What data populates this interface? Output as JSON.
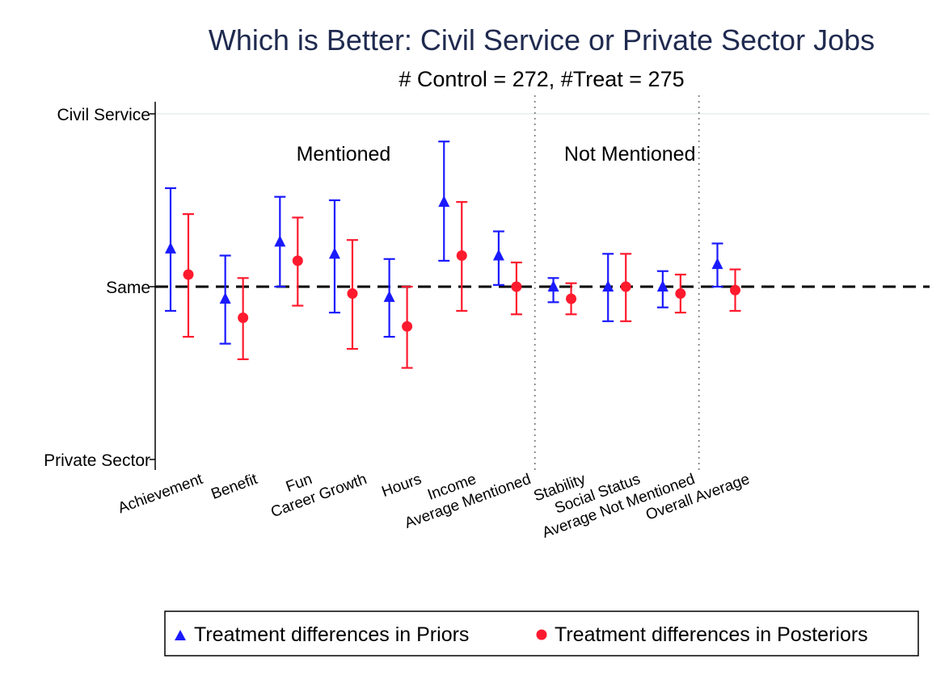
{
  "chart_data": {
    "type": "scatter",
    "title": "Which is Better: Civil Service or Private Sector Jobs",
    "subtitle": "# Control = 272, #Treat = 275",
    "ylim": [
      -1,
      1
    ],
    "y_ticks": [
      {
        "value": 1,
        "label": "Civil Service"
      },
      {
        "value": 0,
        "label": "Same"
      },
      {
        "value": -1,
        "label": "Private Sector"
      }
    ],
    "reference_line": 0,
    "grid": false,
    "sections": [
      {
        "label": "Mentioned",
        "categories": [
          "Achievement",
          "Benefit",
          "Fun",
          "Career Growth",
          "Hours",
          "Income",
          "Average Mentioned"
        ]
      },
      {
        "label": "Not Mentioned",
        "categories": [
          "Stability",
          "Social Status",
          "Average Not Mentioned"
        ]
      }
    ],
    "categories": [
      "Achievement",
      "Benefit",
      "Fun",
      "Career Growth",
      "Hours",
      "Income",
      "Average Mentioned",
      "Stability",
      "Social Status",
      "Average Not Mentioned",
      "Overall Average"
    ],
    "series": [
      {
        "name": "Treatment differences in Priors",
        "marker": "triangle",
        "color": "#1a1aff",
        "values": [
          0.22,
          -0.07,
          0.26,
          0.19,
          -0.06,
          0.49,
          0.18,
          0.0,
          0.0,
          0.0,
          0.13
        ],
        "ci_low": [
          -0.14,
          -0.33,
          0.0,
          -0.15,
          -0.29,
          0.15,
          0.01,
          -0.09,
          -0.2,
          -0.12,
          0.0
        ],
        "ci_high": [
          0.57,
          0.18,
          0.52,
          0.5,
          0.16,
          0.84,
          0.32,
          0.05,
          0.19,
          0.09,
          0.25
        ]
      },
      {
        "name": "Treatment differences in Posteriors",
        "marker": "circle",
        "color": "#ff1a2e",
        "values": [
          0.07,
          -0.18,
          0.15,
          -0.04,
          -0.23,
          0.18,
          0.0,
          -0.07,
          0.0,
          -0.04,
          -0.02
        ],
        "ci_low": [
          -0.29,
          -0.42,
          -0.11,
          -0.36,
          -0.47,
          -0.14,
          -0.16,
          -0.16,
          -0.2,
          -0.15,
          -0.14
        ],
        "ci_high": [
          0.42,
          0.05,
          0.4,
          0.27,
          0.0,
          0.49,
          0.14,
          0.02,
          0.19,
          0.07,
          0.1
        ]
      }
    ],
    "legend_position": "bottom"
  }
}
